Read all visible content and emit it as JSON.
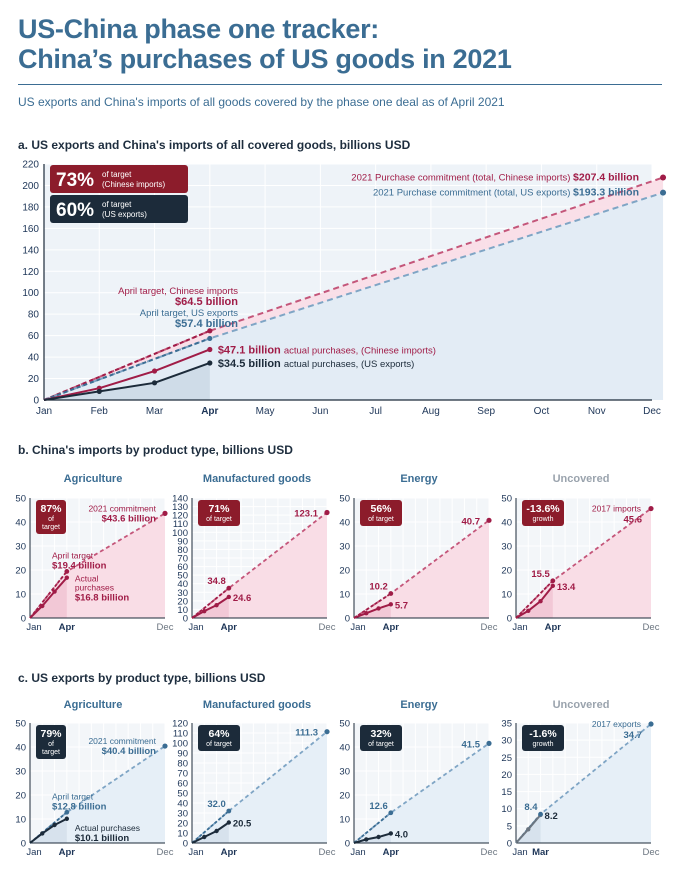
{
  "header": {
    "title_line1": "US-China phase one tracker:",
    "title_line2": "China’s purchases of US goods in 2021",
    "subtitle": "US exports and China's imports of all goods covered by the phase one deal as of April 2021"
  },
  "colors": {
    "red": "#a01c47",
    "redDashed": "#c4567a",
    "pinkFill": "#f9dde6",
    "navy": "#1c2b3a",
    "blueDashed": "#7fa5c5",
    "blueFill": "#e6eff7",
    "badgeRed": "#8c1c2b",
    "badgeNavy": "#1c2b3a",
    "grayTitle": "#9aa3ad",
    "blueTitle": "#3b6d93"
  },
  "chart_data": [
    {
      "id": "main",
      "type": "line",
      "title": "a. US exports and China's imports of all covered goods, billions USD",
      "categories": [
        "Jan",
        "Feb",
        "Mar",
        "Apr",
        "May",
        "Jun",
        "Jul",
        "Aug",
        "Sep",
        "Oct",
        "Nov",
        "Dec"
      ],
      "ylim": [
        0,
        220
      ],
      "yticks": [
        0,
        20,
        40,
        60,
        80,
        100,
        120,
        140,
        160,
        180,
        200,
        220
      ],
      "badges": [
        {
          "value": "73%",
          "label1": "of target",
          "label2": "(Chinese imports)"
        },
        {
          "value": "60%",
          "label1": "of target",
          "label2": "(US exports)"
        }
      ],
      "series": [
        {
          "role": "china_target",
          "x": [
            0,
            3,
            11.2
          ],
          "y": [
            0,
            64.5,
            207.4
          ]
        },
        {
          "role": "us_target",
          "x": [
            0,
            3,
            11.2
          ],
          "y": [
            0,
            57.4,
            193.3
          ]
        },
        {
          "role": "china_actual",
          "x": [
            0,
            1,
            2,
            3
          ],
          "y": [
            0,
            11,
            27,
            47.1
          ]
        },
        {
          "role": "us_actual",
          "x": [
            0,
            1,
            2,
            3
          ],
          "y": [
            0,
            8,
            16,
            34.5
          ]
        }
      ],
      "annotations": {
        "china_commit_label": "2021 Purchase commitment (total, Chinese imports)",
        "china_commit_value": "$207.4 billion",
        "us_commit_label": "2021 Purchase commitment (total, US exports)",
        "us_commit_value": "$193.3 billion",
        "april_china_label": "April target, Chinese imports",
        "april_china_value": "$64.5 billion",
        "april_us_label": "April target, US exports",
        "april_us_value": "$57.4 billion",
        "china_actual_value": "$47.1 billion",
        "china_actual_label": "actual purchases, (Chinese imports)",
        "us_actual_value": "$34.5 billion",
        "us_actual_label": "actual purchases, (US exports)"
      }
    },
    {
      "id": "b",
      "type": "line",
      "title": "b. China's imports by product type, billions USD",
      "panels": [
        {
          "name": "Agriculture",
          "ymax": 50,
          "yticks": [
            0,
            10,
            20,
            30,
            40,
            50
          ],
          "badge": [
            "87%",
            "of",
            "target"
          ],
          "target": {
            "x": [
              0,
              3,
              11
            ],
            "y": [
              0,
              19.4,
              43.6
            ]
          },
          "actual": {
            "x": [
              0,
              1,
              2,
              3
            ],
            "y": [
              0,
              5,
              11,
              16.8
            ]
          },
          "labels": {
            "commit_label": "2021 commitment",
            "commit_value": "$43.6 billion",
            "target_label": "April target",
            "target_value": "$19.4 billion",
            "actual_label1": "Actual",
            "actual_label2": "purchases",
            "actual_value": "$16.8 billion"
          },
          "xticks": [
            "Jan",
            "Apr",
            "Dec"
          ]
        },
        {
          "name": "Manufactured goods",
          "ymax": 140,
          "yticks": [
            0,
            10,
            20,
            30,
            40,
            50,
            60,
            70,
            80,
            90,
            100,
            110,
            120,
            130,
            140
          ],
          "badge": [
            "71%",
            "of target"
          ],
          "target": {
            "x": [
              0,
              3,
              11
            ],
            "y": [
              0,
              34.8,
              123.1
            ]
          },
          "actual": {
            "x": [
              0,
              1,
              2,
              3
            ],
            "y": [
              0,
              8,
              15,
              24.6
            ]
          },
          "labels": {
            "end_value": "123.1",
            "target_value": "34.8",
            "actual_value": "24.6"
          },
          "xticks": [
            "Jan",
            "Apr",
            "Dec"
          ]
        },
        {
          "name": "Energy",
          "ymax": 50,
          "yticks": [
            0,
            10,
            20,
            30,
            40,
            50
          ],
          "badge": [
            "56%",
            "of target"
          ],
          "target": {
            "x": [
              0,
              3,
              11
            ],
            "y": [
              0,
              10.2,
              40.7
            ]
          },
          "actual": {
            "x": [
              0,
              1,
              2,
              3
            ],
            "y": [
              0,
              2,
              4,
              5.7
            ]
          },
          "labels": {
            "end_value": "40.7",
            "target_value": "10.2",
            "actual_value": "5.7"
          },
          "xticks": [
            "Jan",
            "Apr",
            "Dec"
          ]
        },
        {
          "name": "Uncovered",
          "ymax": 50,
          "yticks": [
            0,
            10,
            20,
            30,
            40,
            50
          ],
          "badge": [
            "-13.6%",
            "growth"
          ],
          "target": {
            "x": [
              0,
              3,
              11
            ],
            "y": [
              0,
              15.5,
              45.6
            ]
          },
          "actual": {
            "x": [
              0,
              1,
              2,
              3
            ],
            "y": [
              0,
              3,
              7,
              13.4
            ]
          },
          "labels": {
            "end_label": "2017 imports",
            "end_value": "45.6",
            "target_value": "15.5",
            "actual_value": "13.4"
          },
          "xticks": [
            "Jan",
            "Apr",
            "Dec"
          ]
        }
      ]
    },
    {
      "id": "c",
      "type": "line",
      "title": "c. US exports by product type, billions USD",
      "panels": [
        {
          "name": "Agriculture",
          "ymax": 50,
          "yticks": [
            0,
            10,
            20,
            30,
            40,
            50
          ],
          "badge": [
            "79%",
            "of",
            "target"
          ],
          "target": {
            "x": [
              0,
              3,
              11
            ],
            "y": [
              0,
              12.8,
              40.4
            ]
          },
          "actual": {
            "x": [
              0,
              1,
              2,
              3
            ],
            "y": [
              0,
              4,
              7.5,
              10.1
            ]
          },
          "labels": {
            "commit_label": "2021 commitment",
            "commit_value": "$40.4 billion",
            "target_label": "April target",
            "target_value": "$12.8 billion",
            "actual_label1": "Actual purchases",
            "actual_value": "$10.1 billion"
          },
          "xticks": [
            "Jan",
            "Apr",
            "Dec"
          ]
        },
        {
          "name": "Manufactured goods",
          "ymax": 120,
          "yticks": [
            0,
            10,
            20,
            30,
            40,
            50,
            60,
            70,
            80,
            90,
            100,
            110,
            120
          ],
          "badge": [
            "64%",
            "of target"
          ],
          "target": {
            "x": [
              0,
              3,
              11
            ],
            "y": [
              0,
              32.0,
              111.3
            ]
          },
          "actual": {
            "x": [
              0,
              1,
              2,
              3
            ],
            "y": [
              0,
              6,
              12,
              20.5
            ]
          },
          "labels": {
            "end_value": "111.3",
            "target_value": "32.0",
            "actual_value": "20.5"
          },
          "xticks": [
            "Jan",
            "Apr",
            "Dec"
          ]
        },
        {
          "name": "Energy",
          "ymax": 50,
          "yticks": [
            0,
            10,
            20,
            30,
            40,
            50
          ],
          "badge": [
            "32%",
            "of target"
          ],
          "target": {
            "x": [
              0,
              3,
              11
            ],
            "y": [
              0,
              12.6,
              41.5
            ]
          },
          "actual": {
            "x": [
              0,
              1,
              2,
              3
            ],
            "y": [
              0,
              1.5,
              2.5,
              4.0
            ]
          },
          "labels": {
            "end_value": "41.5",
            "target_value": "12.6",
            "actual_value": "4.0"
          },
          "xticks": [
            "Jan",
            "Apr",
            "Dec"
          ]
        },
        {
          "name": "Uncovered",
          "ymax": 35,
          "yticks": [
            0,
            5,
            10,
            15,
            20,
            25,
            30,
            35
          ],
          "badge": [
            "-1.6%",
            "growth"
          ],
          "target": {
            "x": [
              0,
              2,
              11
            ],
            "y": [
              0,
              8.4,
              34.7
            ]
          },
          "actual": {
            "x": [
              0,
              1,
              2
            ],
            "y": [
              0,
              4,
              8.2
            ]
          },
          "labels": {
            "end_label": "2017 exports",
            "end_value": "34.7",
            "target_value": "8.4",
            "actual_value": "8.2"
          },
          "xticks": [
            "Jan",
            "Mar",
            "Dec"
          ]
        }
      ]
    }
  ]
}
